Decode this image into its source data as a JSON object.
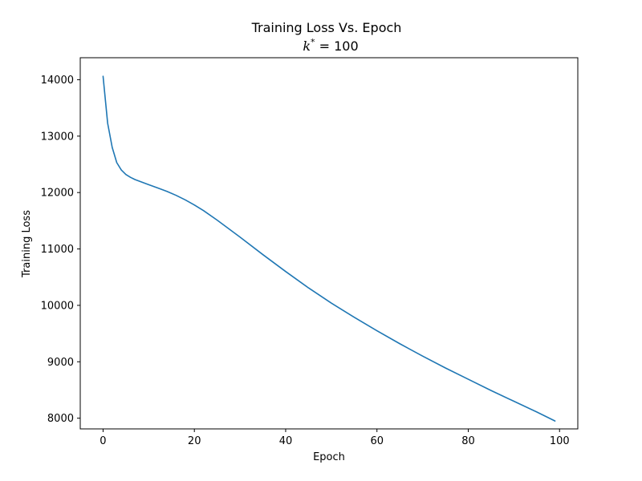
{
  "chart_data": {
    "type": "line",
    "title": "Training Loss Vs. Epoch",
    "subtitle": {
      "symbol": "k",
      "superscript": "*",
      "relation": " = ",
      "value": "100"
    },
    "xlabel": "Epoch",
    "ylabel": "Training Loss",
    "xlim": [
      -5,
      104
    ],
    "ylim": [
      7810,
      14390
    ],
    "xticks": [
      0,
      20,
      40,
      60,
      80,
      100
    ],
    "yticks": [
      8000,
      9000,
      10000,
      11000,
      12000,
      13000,
      14000
    ],
    "grid": false,
    "line_color": "#1f77b4",
    "series": [
      {
        "x": [
          0,
          1,
          2,
          3,
          4,
          5,
          6,
          7,
          8,
          10,
          12,
          14,
          16,
          18,
          20,
          22,
          25,
          30,
          35,
          40,
          45,
          50,
          55,
          60,
          65,
          70,
          75,
          80,
          85,
          90,
          95,
          99
        ],
        "y": [
          14060,
          13230,
          12800,
          12530,
          12400,
          12320,
          12270,
          12230,
          12200,
          12140,
          12080,
          12020,
          11950,
          11870,
          11780,
          11680,
          11510,
          11210,
          10900,
          10600,
          10310,
          10040,
          9790,
          9550,
          9320,
          9100,
          8890,
          8690,
          8490,
          8300,
          8110,
          7950
        ]
      }
    ]
  }
}
